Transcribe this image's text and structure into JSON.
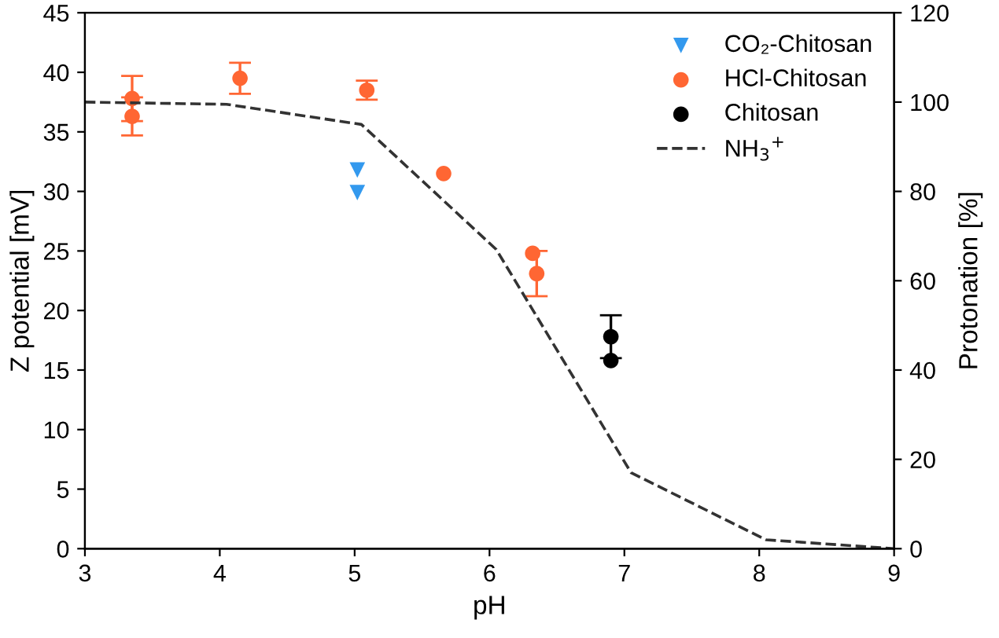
{
  "chart_data": {
    "type": "scatter",
    "xlabel": "pH",
    "ylabel": "Z potential [mV]",
    "y2label": "Protonation [%]",
    "xlim": [
      3,
      9
    ],
    "xticks": [
      3,
      4,
      5,
      6,
      7,
      8,
      9
    ],
    "ylim": [
      0,
      45
    ],
    "yticks": [
      0,
      5,
      10,
      15,
      20,
      25,
      30,
      35,
      40,
      45
    ],
    "y2lim": [
      0,
      120
    ],
    "y2ticks": [
      0,
      20,
      40,
      60,
      80,
      100,
      120
    ],
    "legend": "top right",
    "grid": false,
    "series": [
      {
        "name": "CO₂-Chitosan",
        "marker": "triangle",
        "color": "#3399ee",
        "x": [
          5.02,
          5.02
        ],
        "values": [
          31.8,
          29.9
        ]
      },
      {
        "name": "HCl-Chitosan",
        "marker": "circle",
        "color": "#ff6633",
        "x": [
          3.35,
          3.35,
          4.15,
          5.09,
          5.66,
          6.32,
          6.35
        ],
        "values": [
          37.8,
          36.3,
          39.5,
          38.5,
          31.5,
          24.8,
          23.1
        ],
        "errors": [
          1.9,
          1.6,
          1.3,
          0.8,
          null,
          null,
          1.9
        ]
      },
      {
        "name": "Chitosan",
        "marker": "circle",
        "color": "#000000",
        "x": [
          6.9,
          6.9
        ],
        "values": [
          17.8,
          15.8
        ],
        "errors": [
          1.8,
          null
        ]
      },
      {
        "name": "NH$_{3}$$^{+}$",
        "type": "line",
        "axis": "y2",
        "line_style": "dashed",
        "marker": "none",
        "color": "#333333",
        "x": [
          3,
          4.05,
          5.05,
          6.05,
          7.05,
          8.05,
          9
        ],
        "values": [
          100,
          99.5,
          95,
          67,
          17,
          2,
          0
        ]
      }
    ]
  }
}
